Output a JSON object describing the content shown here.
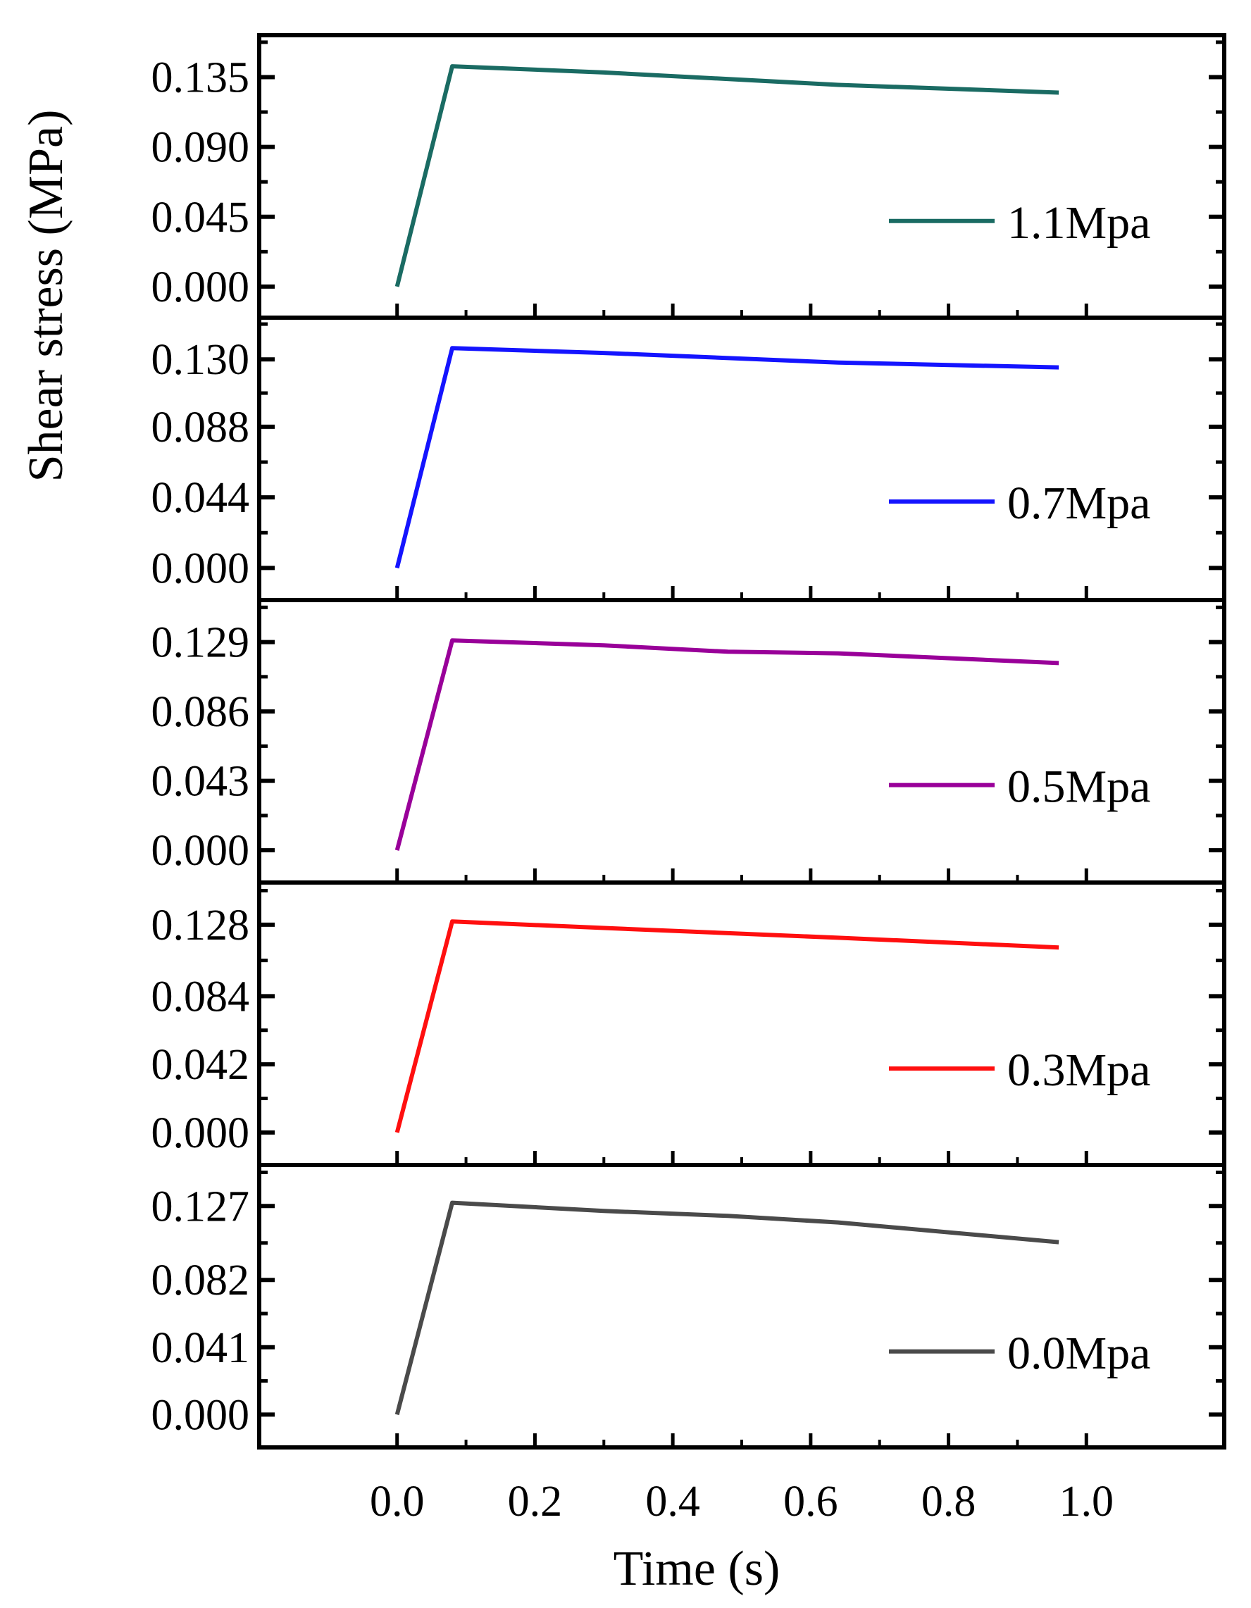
{
  "chart_data": [
    {
      "type": "line",
      "series": [
        {
          "name": "1.1Mpa",
          "color": "#1a6b63",
          "x": [
            0.0,
            0.08,
            0.3,
            0.64,
            0.96
          ],
          "y": [
            0.0,
            0.142,
            0.138,
            0.13,
            0.125
          ]
        }
      ],
      "legend": {
        "label": "1.1Mpa",
        "placement": "lower-right"
      },
      "yticks": [
        "0.000",
        "0.045",
        "0.090",
        "0.135"
      ],
      "ylim": [
        -0.02,
        0.162
      ],
      "xlim": [
        -0.2,
        1.2
      ]
    },
    {
      "type": "line",
      "series": [
        {
          "name": "0.7Mpa",
          "color": "#1414ff",
          "x": [
            0.0,
            0.08,
            0.3,
            0.64,
            0.96
          ],
          "y": [
            0.0,
            0.137,
            0.134,
            0.128,
            0.125
          ]
        }
      ],
      "legend": {
        "label": "0.7Mpa",
        "placement": "lower-right"
      },
      "yticks": [
        "0.000",
        "0.044",
        "0.088",
        "0.130"
      ],
      "ylim": [
        -0.02,
        0.156
      ],
      "xlim": [
        -0.2,
        1.2
      ]
    },
    {
      "type": "line",
      "series": [
        {
          "name": "0.5Mpa",
          "color": "#990099",
          "x": [
            0.0,
            0.08,
            0.3,
            0.48,
            0.64,
            0.96
          ],
          "y": [
            0.0,
            0.13,
            0.127,
            0.123,
            0.122,
            0.116
          ]
        }
      ],
      "legend": {
        "label": "0.5Mpa",
        "placement": "lower-right"
      },
      "yticks": [
        "0.000",
        "0.043",
        "0.086",
        "0.129"
      ],
      "ylim": [
        -0.02,
        0.155
      ],
      "xlim": [
        -0.2,
        1.2
      ]
    },
    {
      "type": "line",
      "series": [
        {
          "name": "0.3Mpa",
          "color": "#ff0f0f",
          "x": [
            0.0,
            0.08,
            0.3,
            0.64,
            0.96
          ],
          "y": [
            0.0,
            0.13,
            0.126,
            0.12,
            0.114
          ]
        }
      ],
      "legend": {
        "label": "0.3Mpa",
        "placement": "lower-right"
      },
      "yticks": [
        "0.000",
        "0.042",
        "0.084",
        "0.128"
      ],
      "ylim": [
        -0.02,
        0.154
      ],
      "xlim": [
        -0.2,
        1.2
      ]
    },
    {
      "type": "line",
      "series": [
        {
          "name": "0.0Mpa",
          "color": "#4a4a4a",
          "x": [
            0.0,
            0.08,
            0.3,
            0.48,
            0.64,
            0.96
          ],
          "y": [
            0.0,
            0.129,
            0.124,
            0.121,
            0.117,
            0.105
          ]
        }
      ],
      "legend": {
        "label": "0.0Mpa",
        "placement": "lower-right"
      },
      "yticks": [
        "0.000",
        "0.041",
        "0.082",
        "0.127"
      ],
      "ylim": [
        -0.02,
        0.152
      ],
      "xlim": [
        -0.2,
        1.2
      ]
    }
  ],
  "xaxis": {
    "ticks": [
      0.0,
      0.2,
      0.4,
      0.6,
      0.8,
      1.0
    ],
    "tick_labels": [
      "0.0",
      "0.2",
      "0.4",
      "0.6",
      "0.8",
      "1.0"
    ],
    "label": "Time (s)"
  },
  "ylabel": "Shear stress (MPa)"
}
